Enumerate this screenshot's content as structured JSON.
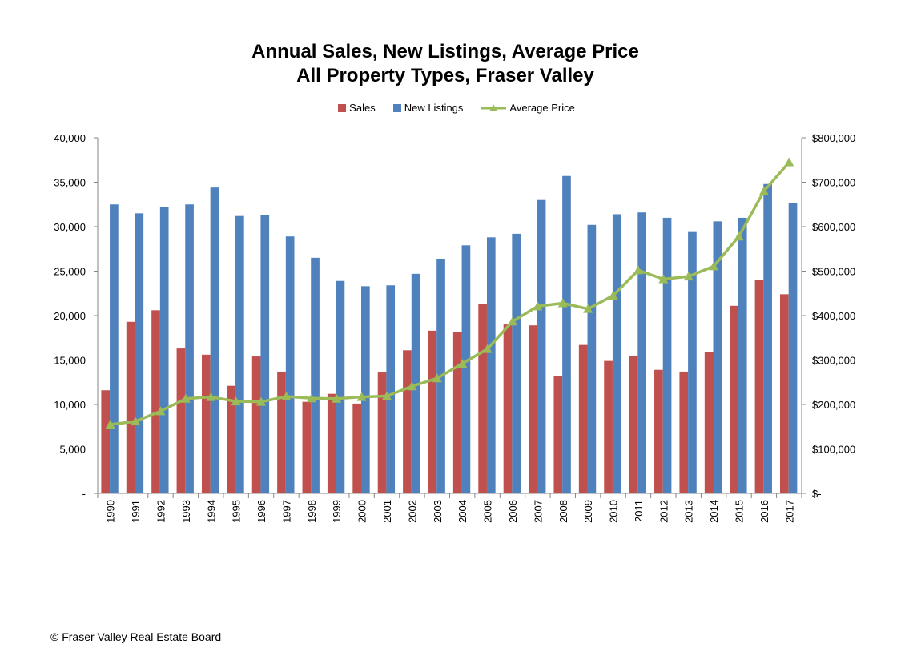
{
  "chart_data": {
    "type": "bar",
    "title": "Annual Sales, New Listings, Average Price",
    "subtitle": "All Property Types, Fraser Valley",
    "xlabel": "",
    "ylabel": "",
    "categories": [
      "1990",
      "1991",
      "1992",
      "1993",
      "1994",
      "1995",
      "1996",
      "1997",
      "1998",
      "1999",
      "2000",
      "2001",
      "2002",
      "2003",
      "2004",
      "2005",
      "2006",
      "2007",
      "2008",
      "2009",
      "2010",
      "2011",
      "2012",
      "2013",
      "2014",
      "2015",
      "2016",
      "2017"
    ],
    "series": [
      {
        "name": "Sales",
        "type": "bar",
        "axis": "left",
        "color": "#C0504D",
        "values": [
          11600,
          19300,
          20600,
          16300,
          15600,
          12100,
          15400,
          13700,
          10300,
          11200,
          10100,
          13600,
          16100,
          18300,
          18200,
          21300,
          19000,
          18900,
          13200,
          16700,
          14900,
          15500,
          13900,
          13700,
          15900,
          21100,
          24000,
          22400
        ]
      },
      {
        "name": "New Listings",
        "type": "bar",
        "axis": "left",
        "color": "#4F81BD",
        "values": [
          32500,
          31500,
          32200,
          32500,
          34400,
          31200,
          31300,
          28900,
          26500,
          23900,
          23300,
          23400,
          24700,
          26400,
          27900,
          28800,
          29200,
          33000,
          35700,
          30200,
          31400,
          31600,
          31000,
          29400,
          30600,
          31000,
          34800,
          32700
        ]
      },
      {
        "name": "Average Price",
        "type": "line",
        "axis": "right",
        "color": "#9BBB59",
        "values": [
          155000,
          162000,
          185000,
          213000,
          217000,
          207000,
          206000,
          218000,
          214000,
          213000,
          217000,
          219000,
          241000,
          259000,
          292000,
          325000,
          387000,
          421000,
          428000,
          415000,
          445000,
          502000,
          482000,
          488000,
          511000,
          578000,
          680000,
          745000
        ]
      }
    ],
    "ylim": [
      0,
      40000
    ],
    "y2lim": [
      0,
      800000
    ],
    "yticks": [
      "-",
      "5,000",
      "10,000",
      "15,000",
      "20,000",
      "25,000",
      "30,000",
      "35,000",
      "40,000"
    ],
    "y2ticks": [
      "$-",
      "$100,000",
      "$200,000",
      "$300,000",
      "$400,000",
      "$500,000",
      "$600,000",
      "$700,000",
      "$800,000"
    ],
    "grid": false,
    "legend_position": "top"
  },
  "footer": "© Fraser Valley Real Estate Board"
}
